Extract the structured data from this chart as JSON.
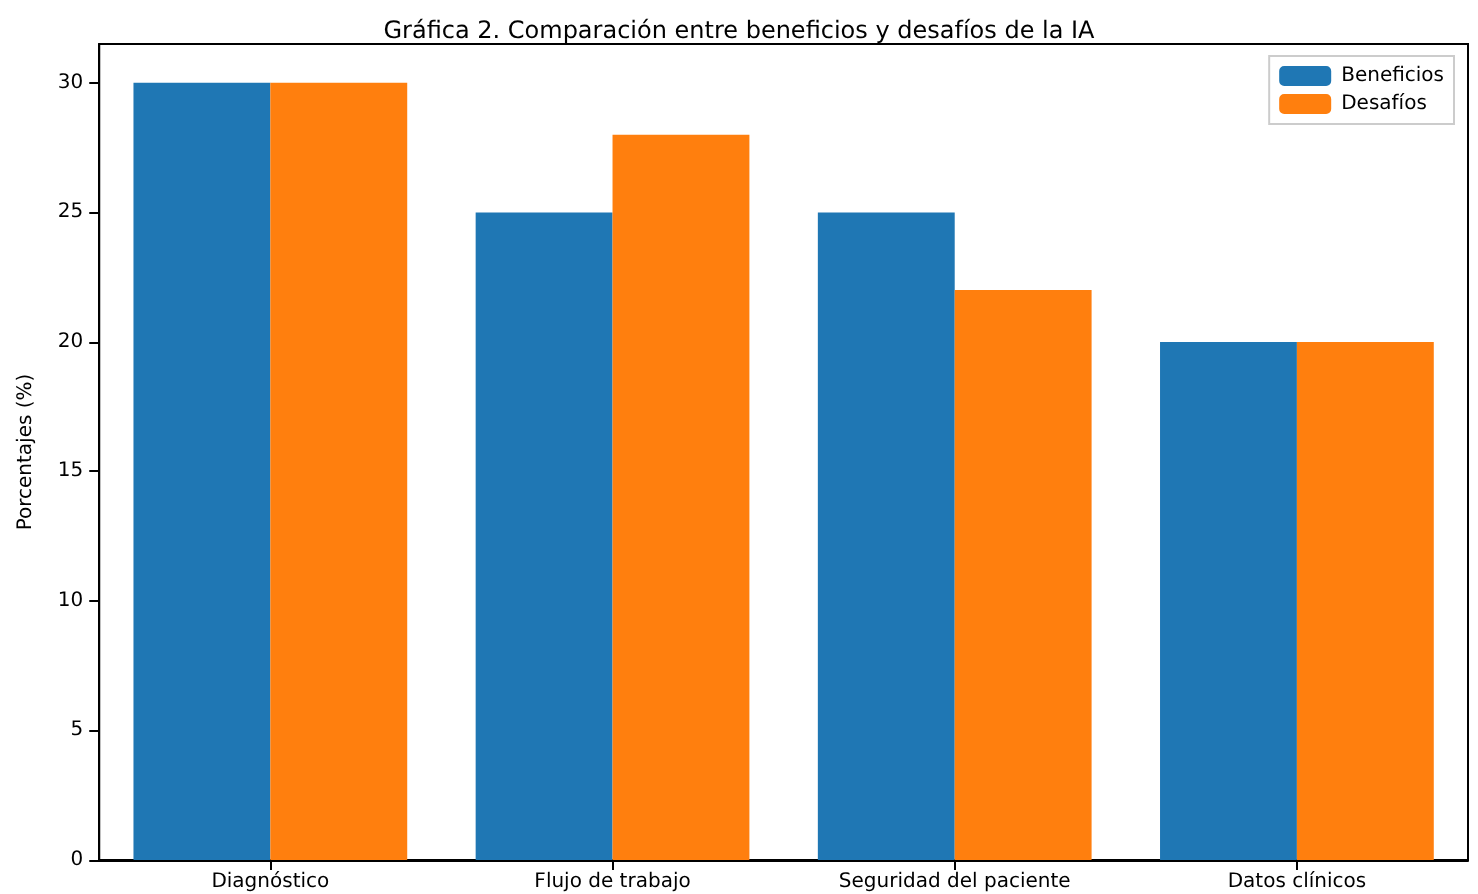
{
  "chart_data": {
    "type": "bar",
    "title": "Gráfica 2. Comparación entre beneficios y desafíos de la IA",
    "ylabel": "Porcentajes (%)",
    "categories": [
      "Diagnóstico",
      "Flujo de trabajo",
      "Seguridad del paciente",
      "Datos clínicos"
    ],
    "series": [
      {
        "name": "Beneficios",
        "color": "#1f77b4",
        "values": [
          30,
          25,
          25,
          20
        ]
      },
      {
        "name": "Desafíos",
        "color": "#ff7f0e",
        "values": [
          30,
          28,
          22,
          20
        ]
      }
    ],
    "ylim": [
      0,
      31.5
    ],
    "yticks": [
      0,
      5,
      10,
      15,
      20,
      25,
      30
    ],
    "grid": false,
    "legend": "top right"
  }
}
